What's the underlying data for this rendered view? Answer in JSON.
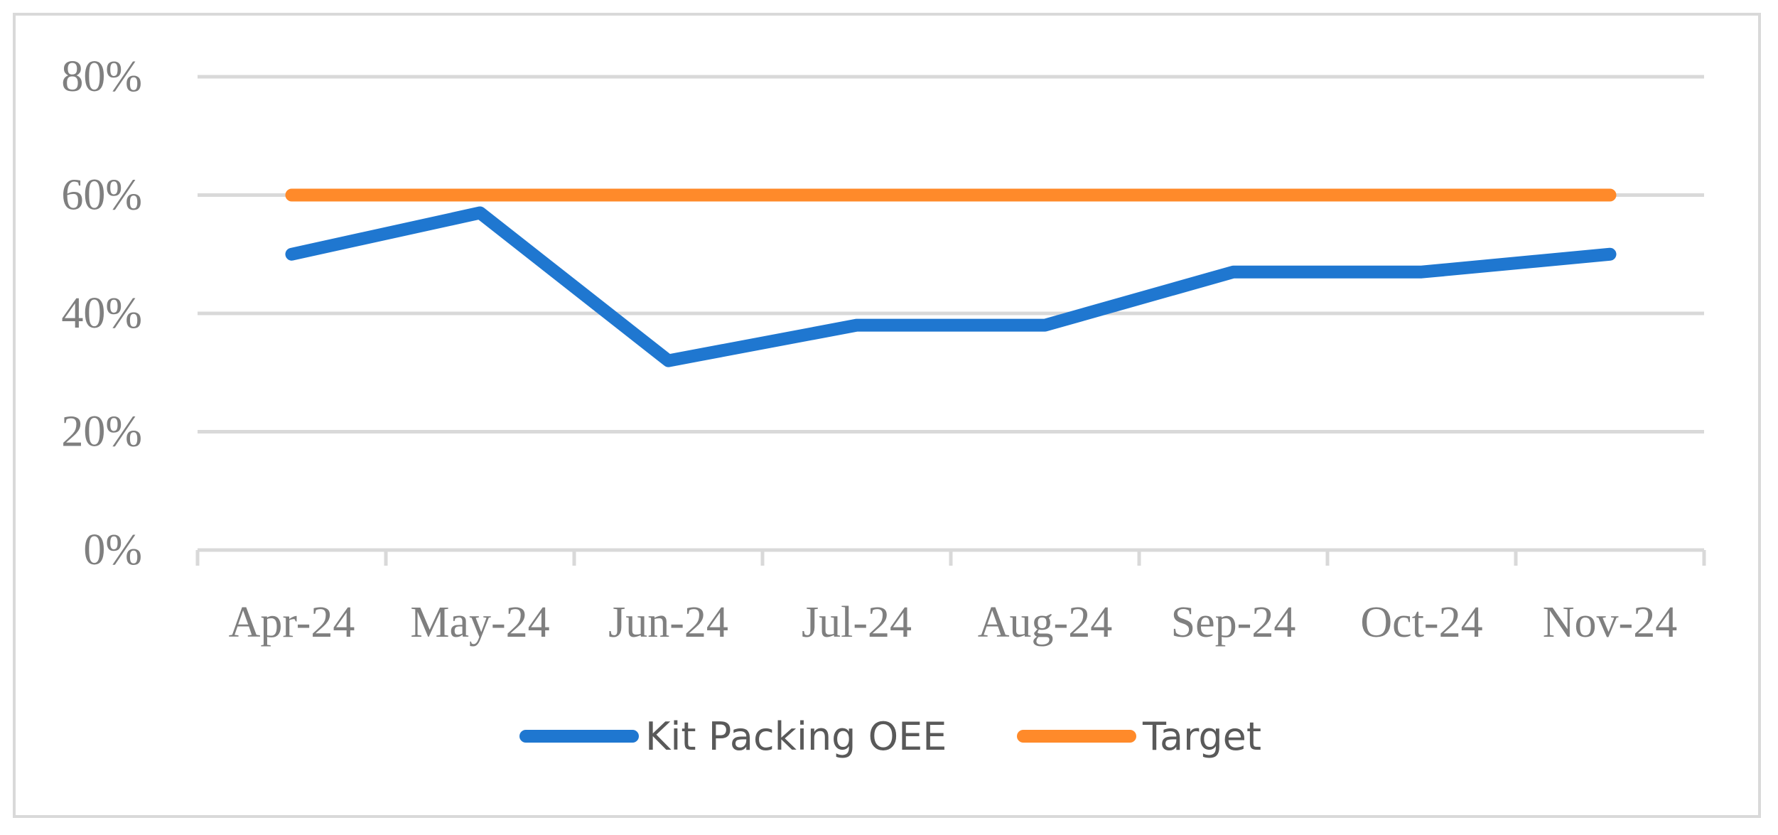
{
  "chart_data": {
    "type": "line",
    "title": "",
    "xlabel": "",
    "ylabel": "",
    "categories": [
      "Apr-24",
      "May-24",
      "Jun-24",
      "Jul-24",
      "Aug-24",
      "Sep-24",
      "Oct-24",
      "Nov-24"
    ],
    "series": [
      {
        "name": "Kit Packing OEE",
        "values": [
          50,
          57,
          32,
          38,
          38,
          47,
          47,
          50
        ],
        "color": "#1f77d0"
      },
      {
        "name": "Target",
        "values": [
          60,
          60,
          60,
          60,
          60,
          60,
          60,
          60
        ],
        "color": "#ff8a2a"
      }
    ],
    "ylim": [
      0,
      80
    ],
    "yticks": [
      0,
      20,
      40,
      60,
      80
    ],
    "ytick_labels": [
      "0%",
      "20%",
      "40%",
      "60%",
      "80%"
    ],
    "grid": true,
    "legend_position": "bottom-center"
  },
  "colors": {
    "gridline": "#d9d9d9",
    "axis": "#d9d9d9",
    "tick_text": "#7f7f7f",
    "legend_text": "#595959",
    "frame": "#d9d9d9"
  }
}
